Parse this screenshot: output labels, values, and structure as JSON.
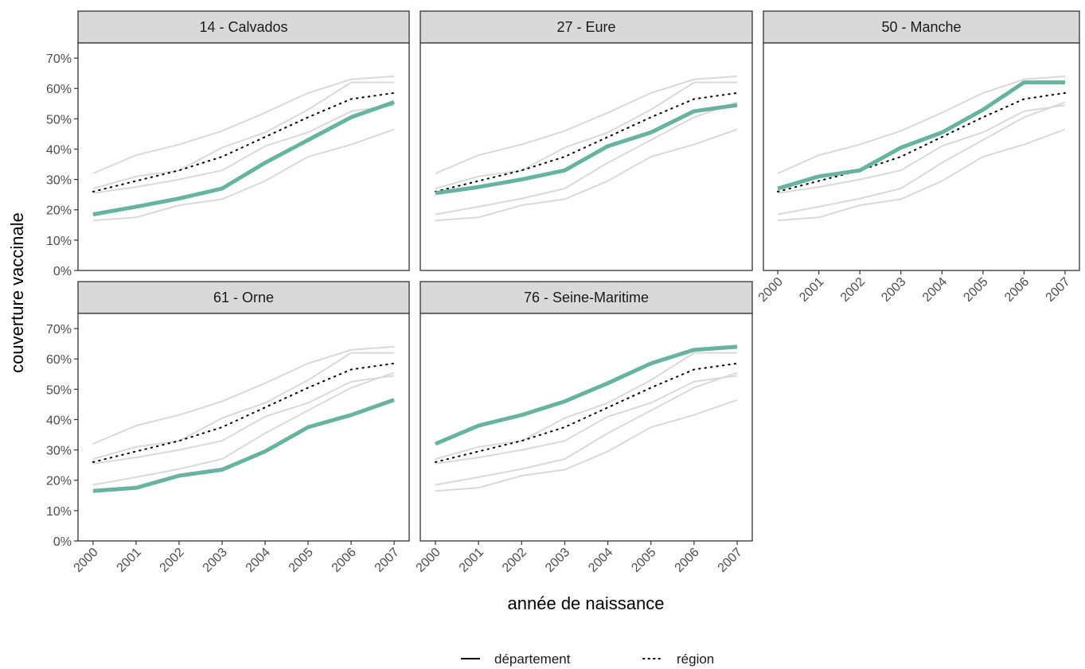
{
  "chart_data": {
    "type": "line",
    "xlabel": "année de naissance",
    "ylabel": "couverture vaccinale",
    "x": [
      2000,
      2001,
      2002,
      2003,
      2004,
      2005,
      2006,
      2007
    ],
    "x_tick_labels": [
      "2000",
      "2001",
      "2002",
      "2003",
      "2004",
      "2005",
      "2006",
      "2007"
    ],
    "ylim": [
      0,
      0.75
    ],
    "y_ticks": [
      0,
      0.1,
      0.2,
      0.3,
      0.4,
      0.5,
      0.6,
      0.7
    ],
    "y_tick_labels": [
      "0%",
      "10%",
      "20%",
      "30%",
      "40%",
      "50%",
      "60%",
      "70%"
    ],
    "grid": false,
    "legend_position": "bottom",
    "legend": [
      {
        "label": "département",
        "linetype": "solid"
      },
      {
        "label": "région",
        "linetype": "dotted"
      }
    ],
    "colors": {
      "highlight": "#66b3a0",
      "background_series": "#d9d9d9",
      "region": "#000000",
      "strip_fill": "#d9d9d9",
      "panel_border": "#333333"
    },
    "region": [
      0.26,
      0.295,
      0.33,
      0.375,
      0.44,
      0.505,
      0.565,
      0.585
    ],
    "panels": [
      {
        "title": "14 - Calvados",
        "values": [
          0.185,
          0.21,
          0.237,
          0.27,
          0.355,
          0.43,
          0.505,
          0.555
        ]
      },
      {
        "title": "27 - Eure",
        "values": [
          0.255,
          0.275,
          0.3,
          0.33,
          0.41,
          0.455,
          0.525,
          0.545
        ]
      },
      {
        "title": "50 - Manche",
        "values": [
          0.27,
          0.31,
          0.33,
          0.405,
          0.455,
          0.53,
          0.62,
          0.62
        ]
      },
      {
        "title": "61 - Orne",
        "values": [
          0.165,
          0.175,
          0.215,
          0.235,
          0.295,
          0.375,
          0.415,
          0.465
        ]
      },
      {
        "title": "76 - Seine-Maritime",
        "values": [
          0.32,
          0.38,
          0.415,
          0.46,
          0.52,
          0.585,
          0.63,
          0.64
        ]
      }
    ]
  }
}
